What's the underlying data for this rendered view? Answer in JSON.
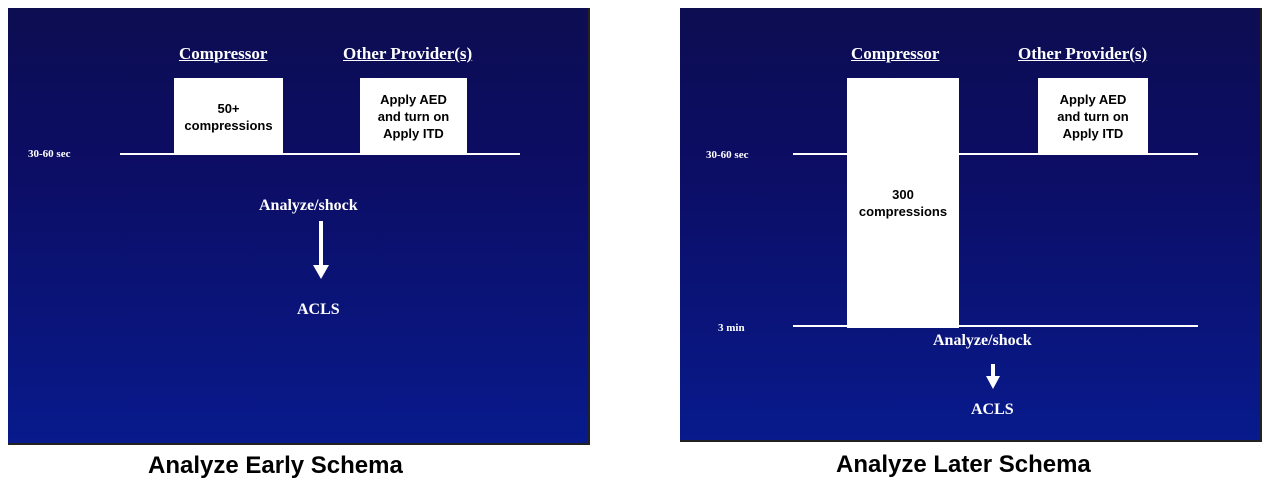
{
  "schema_early": {
    "caption": "Analyze Early Schema",
    "compressor_header": "Compressor",
    "other_header": "Other Provider(s)",
    "compressor_box": "50+\ncompressions",
    "other_box": "Apply AED\nand turn on\nApply ITD",
    "time_label": "30-60 sec",
    "analyze_label": "Analyze/shock",
    "acls_label": "ACLS"
  },
  "schema_later": {
    "caption": "Analyze Later Schema",
    "compressor_header": "Compressor",
    "other_header": "Other Provider(s)",
    "compressor_box": "300\ncompressions",
    "other_box": "Apply AED\nand turn on\nApply ITD",
    "time_label_1": "30-60 sec",
    "time_label_2": "3 min",
    "analyze_label": "Analyze/shock",
    "acls_label": "ACLS"
  },
  "colors": {
    "background_top": "#0d0d52",
    "background_bottom": "#081a8c",
    "box": "#ffffff",
    "text": "#ffffff"
  }
}
